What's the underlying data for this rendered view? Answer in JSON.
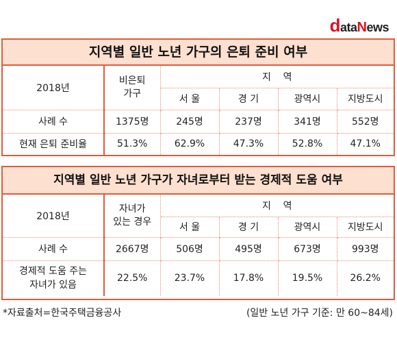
{
  "logo": {
    "d": "d",
    "ata": "ata",
    "n": "N",
    "ews": "ews"
  },
  "panel1": {
    "title": "지역별 일반 노년 가구의 은퇴 준비 여부",
    "year": "2018년",
    "col_main": [
      "비은퇴",
      "가구"
    ],
    "region_header": "지    역",
    "regions": [
      "서 울",
      "경 기",
      "광역시",
      "지방도시"
    ],
    "rows": [
      {
        "label": "사례 수",
        "values": [
          "1375명",
          "245명",
          "237명",
          "341명",
          "552명"
        ]
      },
      {
        "label": "현재 은퇴 준비율",
        "values": [
          "51.3%",
          "62.9%",
          "47.3%",
          "52.8%",
          "47.1%"
        ]
      }
    ]
  },
  "panel2": {
    "title": "지역별 일반 노년 가구가 자녀로부터 받는 경제적 도움 여부",
    "year": "2018년",
    "col_main": [
      "자녀가",
      "있는 경우"
    ],
    "region_header": "지    역",
    "regions": [
      "서 울",
      "경 기",
      "광역시",
      "지방도시"
    ],
    "rows": [
      {
        "label": "사례 수",
        "values": [
          "2667명",
          "506명",
          "495명",
          "673명",
          "993명"
        ]
      },
      {
        "label_lines": [
          "경제적 도움 주는",
          "자녀가 있음"
        ],
        "values": [
          "22.5%",
          "23.7%",
          "17.8%",
          "19.5%",
          "26.2%"
        ]
      }
    ]
  },
  "footer": {
    "source": "*자료출처=한국주택금융공사",
    "note": "(일반 노년 가구 기준: 만 60~84세)"
  }
}
